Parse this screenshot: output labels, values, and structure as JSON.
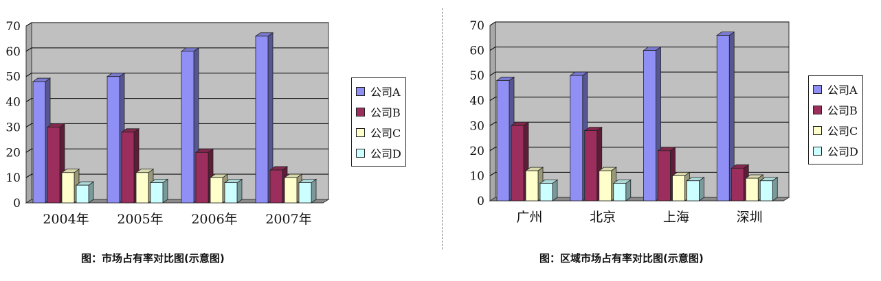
{
  "colors": {
    "A": "#8f8ff5",
    "B": "#9b2e5c",
    "C": "#ffffcc",
    "D": "#ccffff",
    "wall": "#c0c0c0",
    "floor": "#8a8a8a",
    "grid": "#000000"
  },
  "chart_data": [
    {
      "type": "bar",
      "title": "图：市场占有率对比图(示意图)",
      "categories": [
        "2004年",
        "2005年",
        "2006年",
        "2007年"
      ],
      "series": [
        {
          "name": "公司A",
          "values": [
            48,
            50,
            60,
            66
          ]
        },
        {
          "name": "公司B",
          "values": [
            30,
            28,
            20,
            13
          ]
        },
        {
          "name": "公司C",
          "values": [
            12,
            12,
            10,
            10
          ]
        },
        {
          "name": "公司D",
          "values": [
            7,
            8,
            8,
            8
          ]
        }
      ],
      "ylim": [
        0,
        70
      ],
      "yticks": [
        "0",
        "10",
        "20",
        "30",
        "40",
        "50",
        "60",
        "70"
      ],
      "grid": true,
      "legend": "right"
    },
    {
      "type": "bar",
      "title": "图：区域市场占有率对比图(示意图)",
      "categories": [
        "广州",
        "北京",
        "上海",
        "深圳"
      ],
      "series": [
        {
          "name": "公司A",
          "values": [
            48,
            50,
            60,
            66
          ]
        },
        {
          "name": "公司B",
          "values": [
            30,
            28,
            20,
            13
          ]
        },
        {
          "name": "公司C",
          "values": [
            12,
            12,
            10,
            9
          ]
        },
        {
          "name": "公司D",
          "values": [
            7,
            7,
            8,
            8
          ]
        }
      ],
      "ylim": [
        0,
        70
      ],
      "yticks": [
        "0",
        "10",
        "20",
        "30",
        "40",
        "50",
        "60",
        "70"
      ],
      "grid": true,
      "legend": "right"
    }
  ]
}
